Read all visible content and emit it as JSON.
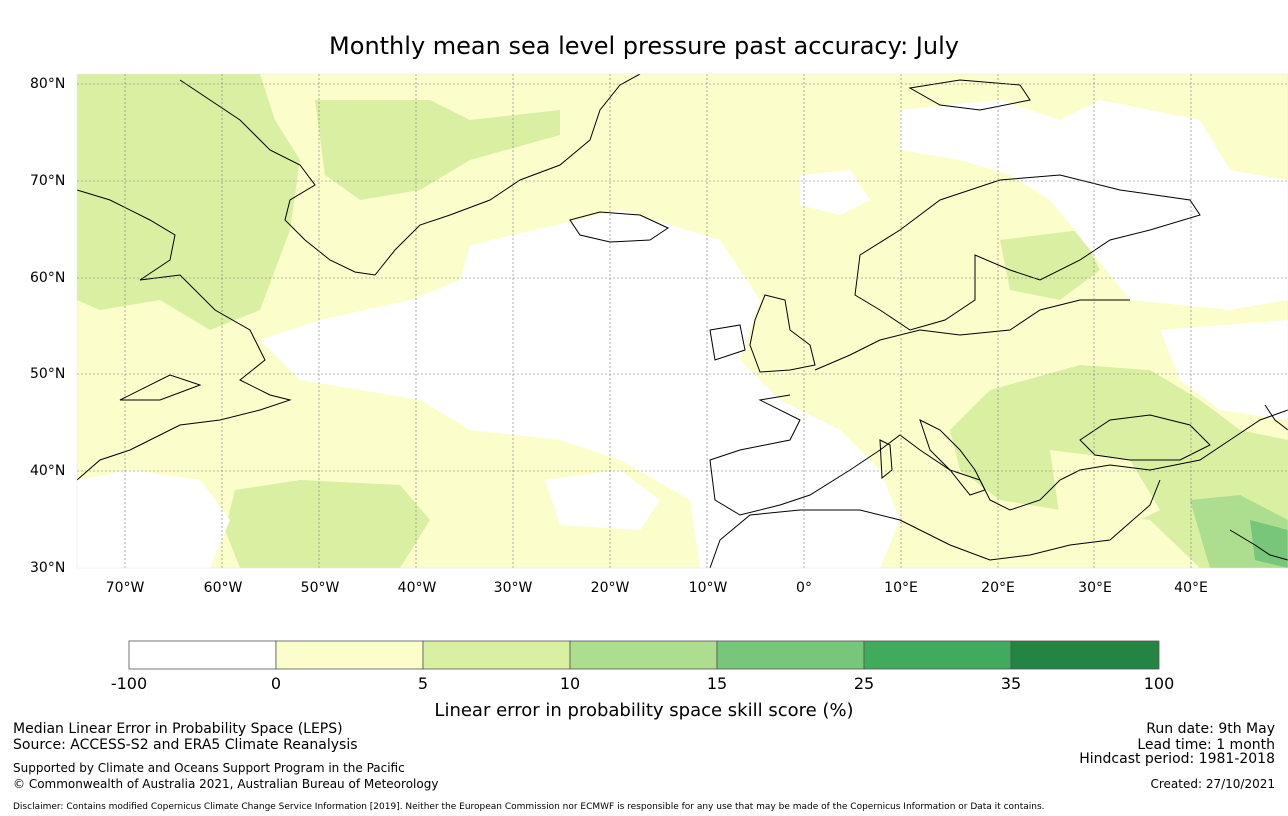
{
  "title": "Monthly mean sea level pressure past accuracy: July",
  "map": {
    "lat_labels": [
      "80°N",
      "70°N",
      "60°N",
      "50°N",
      "40°N",
      "30°N"
    ],
    "lon_labels": [
      "70°W",
      "60°W",
      "50°W",
      "40°W",
      "30°W",
      "20°W",
      "10°W",
      "0°",
      "10°E",
      "20°E",
      "30°E",
      "40°E"
    ],
    "lon_range": [
      -75,
      50
    ],
    "lat_range": [
      30,
      81
    ],
    "grid": true
  },
  "colorbar": {
    "ticks": [
      "-100",
      "0",
      "5",
      "10",
      "15",
      "25",
      "35",
      "100"
    ],
    "colors": [
      "#ffffff",
      "#fbfdcb",
      "#d9f0a3",
      "#addd8e",
      "#78c679",
      "#41ab5d",
      "#238443"
    ],
    "label": "Linear error in probability space skill score (%)"
  },
  "footer": {
    "left_line1": "Median Linear Error in Probability Space (LEPS)",
    "left_line2": "Source: ACCESS-S2 and ERA5 Climate Reanalysis",
    "left_line3": "Supported by Climate and Oceans Support Program in the Pacific",
    "left_line4": "© Commonwealth of Australia 2021, Australian Bureau of Meteorology",
    "right_line1": "Run date: 9th May",
    "right_line2": "Lead time: 1 month",
    "right_line3": "Hindcast period: 1981-2018",
    "right_line4": "Created: 27/10/2021",
    "disclaimer": "Disclaimer: Contains modified Copernicus Climate Change Service Information [2019]. Neither the European Commission nor ECMWF is responsible for any use that may be made of the Copernicus Information or Data it contains."
  }
}
